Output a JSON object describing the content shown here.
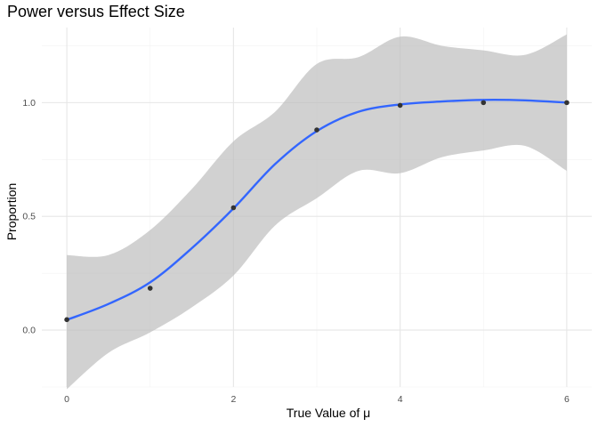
{
  "chart_data": {
    "type": "scatter",
    "title": "Power versus Effect Size",
    "xlabel": "True Value of μ",
    "ylabel": "Proportion",
    "xlim": [
      -0.3,
      6.3
    ],
    "ylim": [
      -0.25,
      1.33
    ],
    "x_ticks": [
      0,
      2,
      4,
      6
    ],
    "x_minor_ticks": [
      1,
      3,
      5
    ],
    "y_ticks": [
      0.0,
      0.5,
      1.0
    ],
    "y_tick_labels": [
      "0.0",
      "0.5",
      "1.0"
    ],
    "y_minor_ticks": [
      0.25,
      0.75,
      1.25,
      -0.25
    ],
    "grid": true,
    "legend": "none",
    "points": [
      {
        "x": 0,
        "y": 0.046
      },
      {
        "x": 1,
        "y": 0.184
      },
      {
        "x": 2,
        "y": 0.538
      },
      {
        "x": 3,
        "y": 0.88
      },
      {
        "x": 4,
        "y": 0.988
      },
      {
        "x": 5,
        "y": 1.0
      },
      {
        "x": 6,
        "y": 1.0
      }
    ],
    "smooth": {
      "x": [
        0,
        0.5,
        1,
        1.5,
        2,
        2.5,
        3,
        3.5,
        4,
        4.5,
        5,
        5.5,
        6
      ],
      "y": [
        0.045,
        0.115,
        0.21,
        0.36,
        0.535,
        0.73,
        0.875,
        0.96,
        0.992,
        1.005,
        1.012,
        1.01,
        1.0
      ],
      "lower": [
        -0.26,
        -0.1,
        -0.01,
        0.1,
        0.24,
        0.46,
        0.58,
        0.7,
        0.69,
        0.76,
        0.79,
        0.81,
        0.7
      ],
      "upper": [
        0.33,
        0.33,
        0.44,
        0.62,
        0.83,
        0.96,
        1.17,
        1.2,
        1.29,
        1.25,
        1.23,
        1.21,
        1.3
      ]
    },
    "colors": {
      "line": "#3366ff",
      "band": "#bebebe",
      "points": "#333333",
      "grid_major": "#e6e6e6",
      "grid_minor": "#f2f2f2"
    }
  }
}
